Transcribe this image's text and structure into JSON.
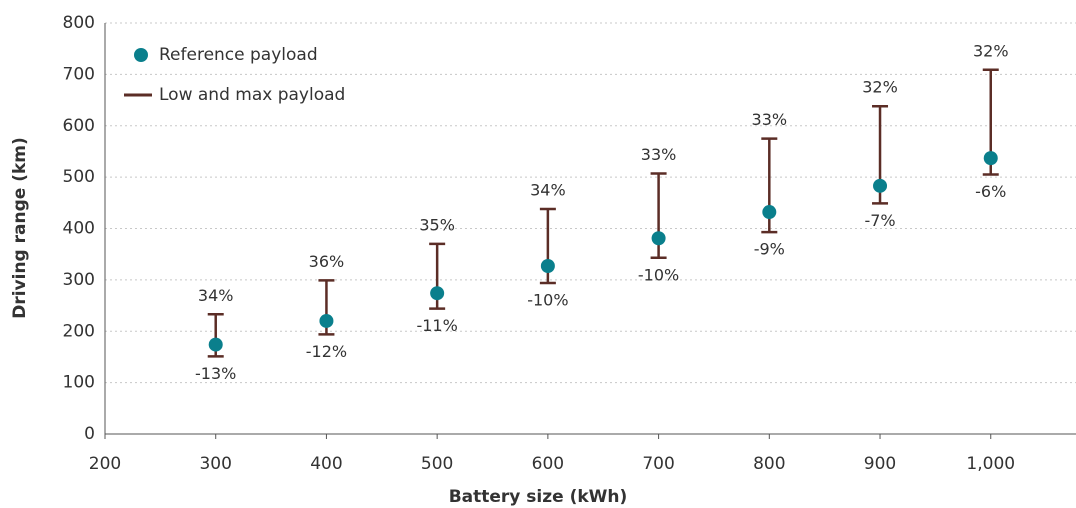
{
  "chart_data": {
    "type": "errorbar",
    "x_label": "Battery size (kWh)",
    "y_label": "Driving range (km)",
    "x": [
      300,
      400,
      500,
      600,
      700,
      800,
      900,
      1000
    ],
    "series": [
      {
        "name": "Reference payload",
        "color": "#0a7f8c",
        "values": [
          174,
          220,
          274,
          327,
          381,
          432,
          483,
          537
        ]
      },
      {
        "name": "Low and max payload",
        "color": "#5b2d26",
        "low": [
          151,
          194,
          244,
          294,
          343,
          393,
          449,
          505
        ],
        "high": [
          233,
          299,
          370,
          438,
          507,
          575,
          638,
          709
        ],
        "high_change": [
          34,
          36,
          35,
          34,
          33,
          33,
          32,
          32
        ],
        "high_change_labels": [
          "34%",
          "36%",
          "35%",
          "34%",
          "33%",
          "33%",
          "32%",
          "32%"
        ],
        "low_change": [
          -13,
          -12,
          -11,
          -10,
          -10,
          -9,
          -7,
          -6
        ],
        "low_change_labels": [
          "-13%",
          "-12%",
          "-11%",
          "-10%",
          "-10%",
          "-9%",
          "-7%",
          "-6%"
        ]
      }
    ],
    "xlim": [
      200,
      1077
    ],
    "xticks": [
      200,
      300,
      400,
      500,
      600,
      700,
      800,
      900,
      {
        "value": 1000,
        "label": "1,000"
      }
    ],
    "ylim": [
      0,
      800
    ],
    "yticks": [
      0,
      100,
      200,
      300,
      400,
      500,
      600,
      700,
      800
    ],
    "grid": true,
    "legend": "upper left"
  }
}
